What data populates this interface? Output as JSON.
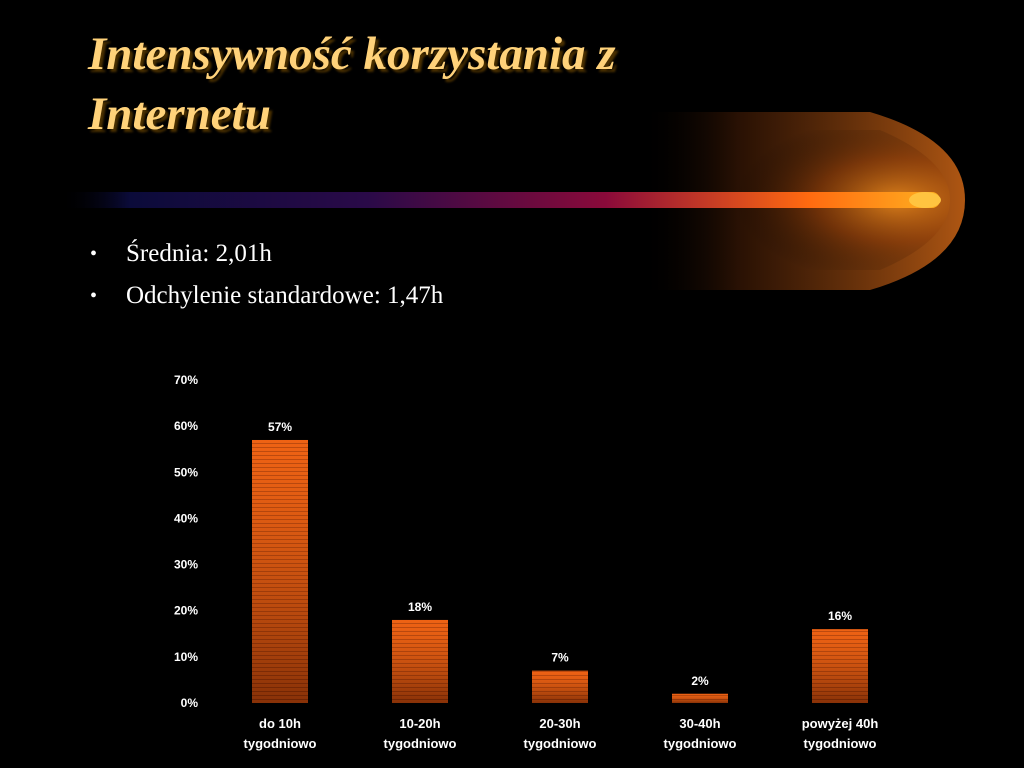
{
  "slide": {
    "title_lines": [
      "Intensywność korzystania z",
      "Internetu"
    ],
    "bullets": [
      "Średnia: 2,01h",
      "Odchylenie standardowe: 1,47h"
    ],
    "colors": {
      "background": "#000000",
      "title": "#ffd27a",
      "bar": "#e85a10",
      "text": "#ffffff"
    }
  },
  "chart_data": {
    "type": "bar",
    "categories": [
      [
        "do 10h",
        "tygodniowo"
      ],
      [
        "10-20h",
        "tygodniowo"
      ],
      [
        "20-30h",
        "tygodniowo"
      ],
      [
        "30-40h",
        "tygodniowo"
      ],
      [
        "powyżej 40h",
        "tygodniowo"
      ]
    ],
    "values": [
      57,
      18,
      7,
      2,
      16
    ],
    "value_labels": [
      "57%",
      "18%",
      "7%",
      "2%",
      "16%"
    ],
    "ylim": [
      0,
      70
    ],
    "yticks": [
      0,
      10,
      20,
      30,
      40,
      50,
      60,
      70
    ],
    "ytick_labels": [
      "0%",
      "10%",
      "20%",
      "30%",
      "40%",
      "50%",
      "60%",
      "70%"
    ],
    "grid": false,
    "legend": "none"
  }
}
